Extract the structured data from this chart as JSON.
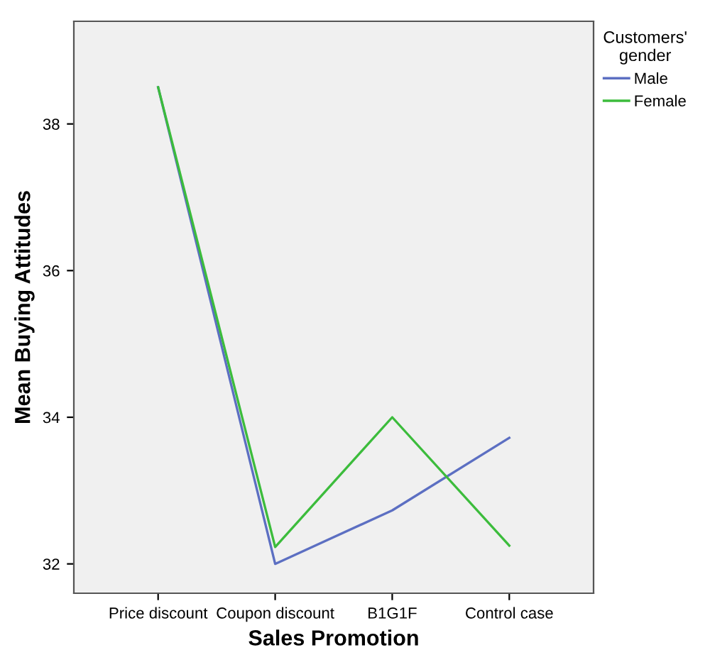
{
  "chart_data": {
    "type": "line",
    "xlabel": "Sales Promotion",
    "ylabel": "Mean Buying Attitudes",
    "legend_title": "Customers'\ngender",
    "categories": [
      "Price discount",
      "Coupon discount",
      "B1G1F",
      "Control case"
    ],
    "series": [
      {
        "name": "Male",
        "color": "#5c6fc2",
        "values": [
          38.5,
          32.0,
          32.73,
          33.72
        ]
      },
      {
        "name": "Female",
        "color": "#3cbc3c",
        "values": [
          38.5,
          32.23,
          34.0,
          32.25
        ]
      }
    ],
    "ylim": [
      31.6,
      39.4
    ],
    "yticks": [
      32,
      34,
      36,
      38
    ],
    "grid": false,
    "legend": "top right",
    "marker": "none",
    "line_style": "solid"
  }
}
